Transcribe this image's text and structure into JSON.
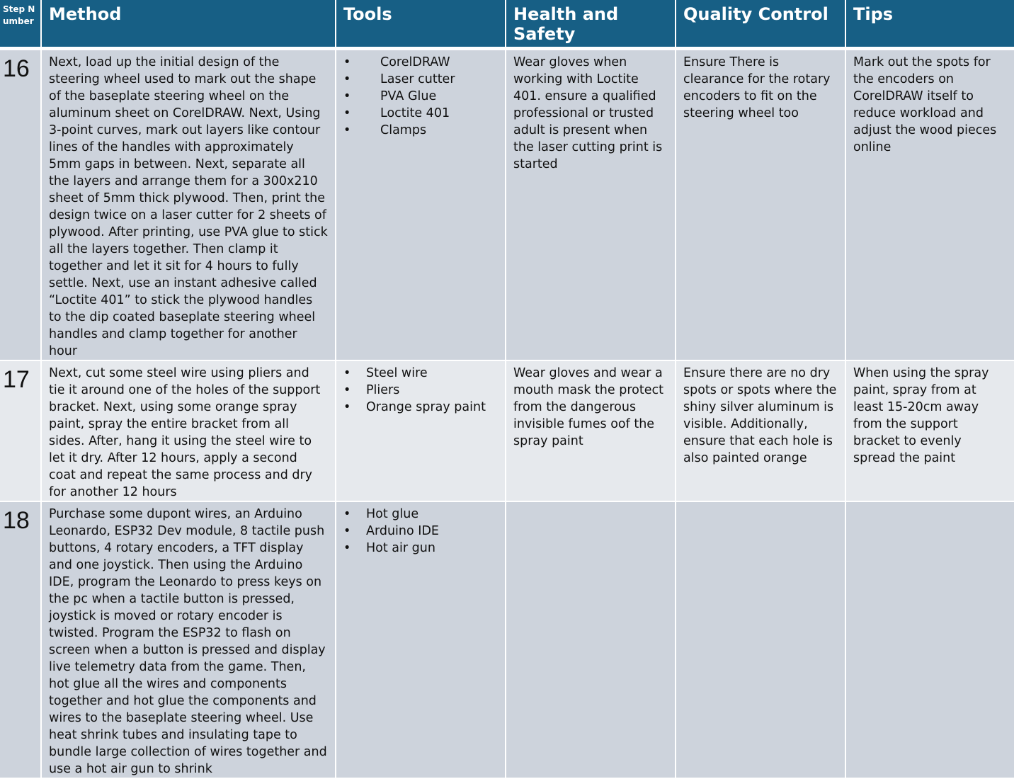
{
  "headers": {
    "step": "Step Number",
    "method": "Method",
    "tools": "Tools",
    "health": "Health and Safety",
    "quality": "Quality Control",
    "tips": "Tips"
  },
  "rows": [
    {
      "step": "16",
      "method": "Next, load up the initial design of the steering wheel used to mark out the shape of the baseplate steering wheel on the aluminum sheet on CorelDRAW. Next, Using 3-point curves, mark out layers like contour lines of the handles with approximately 5mm gaps in between. Next, separate all the layers and arrange them for a 300x210 sheet of 5mm thick plywood. Then, print the design twice on a laser cutter for 2 sheets of plywood. After printing, use PVA glue to stick all the layers together. Then clamp it together and let it sit for 4 hours to fully settle. Next, use an instant adhesive called “Loctite 401” to stick the plywood handles to the dip coated baseplate steering wheel handles and clamp together for another hour",
      "tools": [
        "CorelDRAW",
        "Laser cutter",
        "PVA Glue",
        "Loctite 401",
        "Clamps"
      ],
      "health": "Wear gloves when working with Loctite 401. ensure a qualified professional or trusted adult is present when the laser cutting print is started",
      "quality": "Ensure There is clearance for the rotary encoders to fit on the steering wheel too",
      "tips": "Mark out the spots for the encoders on CorelDRAW itself to reduce workload and adjust the wood pieces online"
    },
    {
      "step": "17",
      "method": "Next, cut some steel wire using pliers and tie it around one of the holes of the support bracket. Next, using some orange spray paint, spray the entire bracket from all sides. After, hang it using the steel wire to let it dry. After 12 hours, apply a second coat and repeat the same process and dry for another 12 hours",
      "tools": [
        "Steel wire",
        "Pliers",
        "Orange spray paint"
      ],
      "health": "Wear gloves and wear a mouth  mask the protect from the dangerous invisible fumes oof the spray paint",
      "quality": "Ensure there are no dry spots or spots where the shiny silver aluminum is visible. Additionally, ensure that each hole is also painted orange",
      "tips": "When using the spray paint, spray from at least 15-20cm away from the support bracket to evenly spread the paint"
    },
    {
      "step": "18",
      "method": "Purchase some dupont wires, an Arduino Leonardo, ESP32 Dev module, 8 tactile push buttons, 4 rotary encoders, a TFT display and one joystick. Then using the Arduino IDE, program the Leonardo to press keys on the pc when a tactile button is pressed, joystick is moved or rotary encoder is twisted. Program the ESP32 to flash on screen when a button is pressed and display live telemetry data from the game. Then, hot glue all the wires and components together and hot glue the components and wires to the baseplate steering wheel. Use heat shrink tubes and insulating tape to bundle large collection of wires together and use a hot air gun to shrink",
      "tools": [
        "Hot glue",
        "Arduino IDE",
        "Hot air gun"
      ],
      "health": "",
      "quality": "",
      "tips": ""
    }
  ]
}
